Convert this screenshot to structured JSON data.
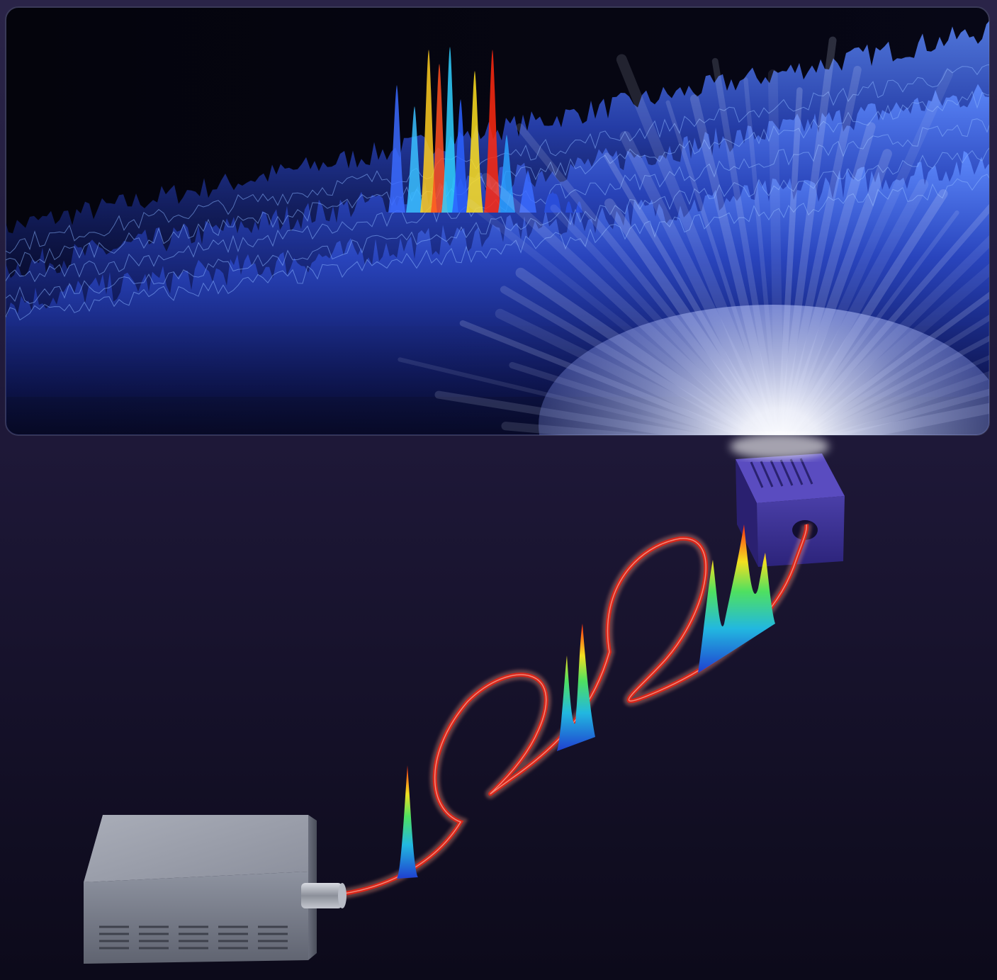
{
  "scene": {
    "colors": {
      "background_top": "#221c3c",
      "background_bottom": "#0c0a1a",
      "panel_fill": "#05050f",
      "speckle_blue": "#2d4fc8",
      "speckle_highlight": "#7fb0ff",
      "fiber_red": "#e03020",
      "fiber_glow": "#ff8a70",
      "laser_box": "#8b909c",
      "output_box": "#3a2f8a"
    },
    "icons": [
      "laser-source-box",
      "optical-fiber-coil",
      "fiber-output-block",
      "light-beam",
      "speckle-pattern",
      "spectral-peaks"
    ]
  }
}
